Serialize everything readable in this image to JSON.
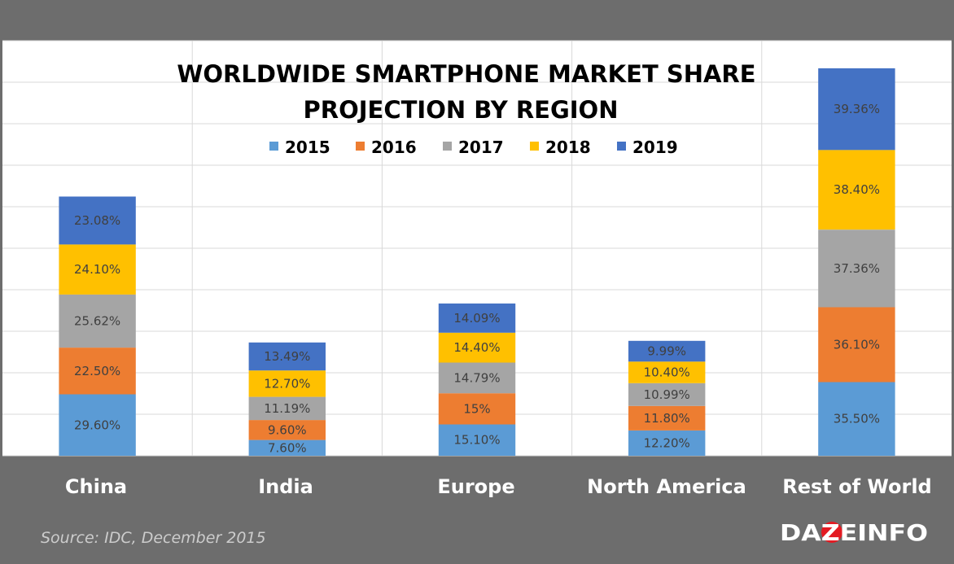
{
  "colors": {
    "frame": "#6d6d6d",
    "gridline": "#d9d9d9",
    "series": [
      "#5b9bd5",
      "#ed7d31",
      "#a5a5a5",
      "#ffc000",
      "#4472c4"
    ]
  },
  "chart_data": {
    "type": "bar",
    "stacked": true,
    "title_lines": [
      "WORLDWIDE SMARTPHONE MARKET SHARE",
      "PROJECTION BY REGION"
    ],
    "legend_position": "top",
    "grid": true,
    "categories": [
      "China",
      "India",
      "Europe",
      "North America",
      "Rest of World"
    ],
    "series": [
      {
        "name": "2015",
        "values": [
          29.6,
          7.6,
          15.1,
          12.2,
          35.5
        ],
        "labels": [
          "29.60%",
          "7.60%",
          "15.10%",
          "12.20%",
          "35.50%"
        ]
      },
      {
        "name": "2016",
        "values": [
          22.5,
          9.6,
          15,
          11.8,
          36.1
        ],
        "labels": [
          "22.50%",
          "9.60%",
          "15%",
          "11.80%",
          "36.10%"
        ]
      },
      {
        "name": "2017",
        "values": [
          25.62,
          11.19,
          14.79,
          10.99,
          37.36
        ],
        "labels": [
          "25.62%",
          "11.19%",
          "14.79%",
          "10.99%",
          "37.36%"
        ]
      },
      {
        "name": "2018",
        "values": [
          24.1,
          12.7,
          14.4,
          10.4,
          38.4
        ],
        "labels": [
          "24.10%",
          "12.70%",
          "14.40%",
          "10.40%",
          "38.40%"
        ]
      },
      {
        "name": "2019",
        "values": [
          23.08,
          13.49,
          14.09,
          9.99,
          39.36
        ],
        "labels": [
          "23.08%",
          "13.49%",
          "14.09%",
          "9.99%",
          "39.36%"
        ]
      }
    ],
    "ylim": [
      0,
      200
    ]
  },
  "footer": {
    "source": "Source: IDC, December 2015",
    "logo": "DAZEINFO"
  }
}
